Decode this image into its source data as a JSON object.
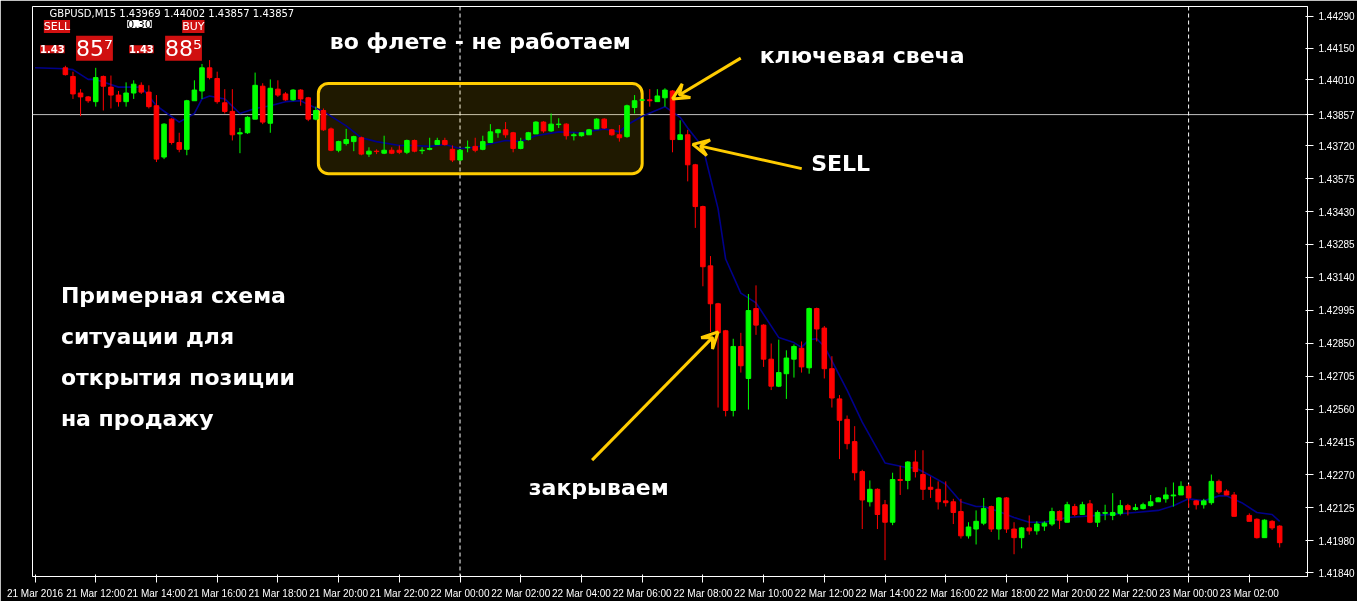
{
  "chart_data": {
    "type": "candlestick",
    "x": [
      "2016-03-21T11:00",
      "2016-03-21T11:15",
      "2016-03-21T11:30",
      "2016-03-21T11:45",
      "2016-03-21T12:00",
      "2016-03-21T12:15",
      "2016-03-21T12:30",
      "2016-03-21T12:45",
      "2016-03-21T13:00",
      "2016-03-21T13:15",
      "2016-03-21T13:30",
      "2016-03-21T13:45",
      "2016-03-21T14:00",
      "2016-03-21T14:15",
      "2016-03-21T14:30",
      "2016-03-21T14:45",
      "2016-03-21T15:00",
      "2016-03-21T15:15",
      "2016-03-21T15:30",
      "2016-03-21T15:45",
      "2016-03-21T16:00",
      "2016-03-21T16:15",
      "2016-03-21T16:30",
      "2016-03-21T16:45",
      "2016-03-21T17:00",
      "2016-03-21T17:15",
      "2016-03-21T17:30",
      "2016-03-21T17:45",
      "2016-03-21T18:00",
      "2016-03-21T18:15",
      "2016-03-21T18:30",
      "2016-03-21T18:45",
      "2016-03-21T19:00",
      "2016-03-21T19:15",
      "2016-03-21T19:30",
      "2016-03-21T19:45",
      "2016-03-21T20:00",
      "2016-03-21T20:15",
      "2016-03-21T20:30",
      "2016-03-21T20:45",
      "2016-03-21T21:00",
      "2016-03-21T21:15",
      "2016-03-21T21:30",
      "2016-03-21T21:45",
      "2016-03-21T22:00",
      "2016-03-21T22:15",
      "2016-03-21T22:30",
      "2016-03-21T22:45",
      "2016-03-21T23:00",
      "2016-03-21T23:15",
      "2016-03-21T23:30",
      "2016-03-21T23:45",
      "2016-03-22T00:00",
      "2016-03-22T00:15",
      "2016-03-22T00:30",
      "2016-03-22T00:45",
      "2016-03-22T01:00",
      "2016-03-22T01:15",
      "2016-03-22T01:30",
      "2016-03-22T01:45",
      "2016-03-22T02:00",
      "2016-03-22T02:15",
      "2016-03-22T02:30",
      "2016-03-22T02:45",
      "2016-03-22T03:00",
      "2016-03-22T03:15",
      "2016-03-22T03:30",
      "2016-03-22T03:45",
      "2016-03-22T04:00",
      "2016-03-22T04:15",
      "2016-03-22T04:30",
      "2016-03-22T04:45",
      "2016-03-22T05:00",
      "2016-03-22T05:15",
      "2016-03-22T05:30",
      "2016-03-22T05:45",
      "2016-03-22T06:00",
      "2016-03-22T06:15",
      "2016-03-22T06:30",
      "2016-03-22T06:45",
      "2016-03-22T07:00",
      "2016-03-22T07:15",
      "2016-03-22T07:30",
      "2016-03-22T07:45",
      "2016-03-22T08:00",
      "2016-03-22T08:15",
      "2016-03-22T08:30",
      "2016-03-22T08:45",
      "2016-03-22T09:00",
      "2016-03-22T09:15",
      "2016-03-22T09:30",
      "2016-03-22T09:45",
      "2016-03-22T10:00",
      "2016-03-22T10:15",
      "2016-03-22T10:30",
      "2016-03-22T10:45",
      "2016-03-22T11:00",
      "2016-03-22T11:15",
      "2016-03-22T11:30",
      "2016-03-22T11:45",
      "2016-03-22T12:00",
      "2016-03-22T12:15",
      "2016-03-22T12:30",
      "2016-03-22T12:45",
      "2016-03-22T13:00",
      "2016-03-22T13:15",
      "2016-03-22T13:30",
      "2016-03-22T13:45",
      "2016-03-22T14:00",
      "2016-03-22T14:15",
      "2016-03-22T14:30",
      "2016-03-22T14:45",
      "2016-03-22T15:00",
      "2016-03-22T15:15",
      "2016-03-22T15:30",
      "2016-03-22T15:45",
      "2016-03-22T16:00",
      "2016-03-22T16:15",
      "2016-03-22T16:30",
      "2016-03-22T16:45",
      "2016-03-22T17:00",
      "2016-03-22T17:15",
      "2016-03-22T17:30",
      "2016-03-22T17:45",
      "2016-03-22T18:00",
      "2016-03-22T18:15",
      "2016-03-22T18:30",
      "2016-03-22T18:45",
      "2016-03-22T19:00",
      "2016-03-22T19:15",
      "2016-03-22T19:30",
      "2016-03-22T19:45",
      "2016-03-22T20:00",
      "2016-03-22T20:15",
      "2016-03-22T20:30",
      "2016-03-22T20:45",
      "2016-03-22T21:00",
      "2016-03-22T21:15",
      "2016-03-22T21:30",
      "2016-03-22T21:45",
      "2016-03-22T22:00",
      "2016-03-22T22:15",
      "2016-03-22T22:30",
      "2016-03-22T22:45",
      "2016-03-22T23:00",
      "2016-03-22T23:15",
      "2016-03-22T23:30",
      "2016-03-22T23:45",
      "2016-03-23T00:00",
      "2016-03-23T00:15",
      "2016-03-23T00:30",
      "2016-03-23T00:45",
      "2016-03-23T01:00",
      "2016-03-23T01:15",
      "2016-03-23T01:30",
      "2016-03-23T02:00",
      "2016-03-23T02:15",
      "2016-03-23T02:30",
      "2016-03-23T02:45",
      "2016-03-23T03:00"
    ],
    "ohlc": [
      [
        1.44063,
        1.44072,
        1.44029,
        1.44033
      ],
      [
        1.44025,
        1.44046,
        1.43926,
        1.43948
      ],
      [
        1.43952,
        1.43969,
        1.4385,
        1.43935
      ],
      [
        1.43935,
        1.43939,
        1.43909,
        1.43918
      ],
      [
        1.43914,
        1.44063,
        1.43892,
        1.4402
      ],
      [
        1.44025,
        1.44029,
        1.43875,
        1.43982
      ],
      [
        1.43978,
        1.44029,
        1.43884,
        1.43943
      ],
      [
        1.43943,
        1.43961,
        1.43892,
        1.43914
      ],
      [
        1.43914,
        1.43999,
        1.43892,
        1.43952
      ],
      [
        1.43952,
        1.44008,
        1.43926,
        1.43991
      ],
      [
        1.43986,
        1.43999,
        1.43948,
        1.43956
      ],
      [
        1.43956,
        1.43986,
        1.43884,
        1.43892
      ],
      [
        1.43896,
        1.43943,
        1.43648,
        1.43661
      ],
      [
        1.4367,
        1.43819,
        1.43661,
        1.43815
      ],
      [
        1.43837,
        1.43841,
        1.43725,
        1.43734
      ],
      [
        1.43734,
        1.43777,
        1.43691,
        1.43704
      ],
      [
        1.43704,
        1.43922,
        1.43678,
        1.43918
      ],
      [
        1.43918,
        1.44008,
        1.43918,
        1.43965
      ],
      [
        1.43961,
        1.4408,
        1.43926,
        1.44063
      ],
      [
        1.44063,
        1.44097,
        1.44012,
        1.4402
      ],
      [
        1.44016,
        1.44046,
        1.43905,
        1.43914
      ],
      [
        1.43909,
        1.43969,
        1.43862,
        1.43871
      ],
      [
        1.43871,
        1.43969,
        1.43743,
        1.43768
      ],
      [
        1.43772,
        1.43798,
        1.43687,
        1.43777
      ],
      [
        1.43777,
        1.4385,
        1.43772,
        1.43845
      ],
      [
        1.43837,
        1.44042,
        1.43837,
        1.43986
      ],
      [
        1.43982,
        1.43995,
        1.43815,
        1.43824
      ],
      [
        1.43819,
        1.44012,
        1.43777,
        1.43973
      ],
      [
        1.43969,
        1.44008,
        1.43935,
        1.43943
      ],
      [
        1.43948,
        1.43956,
        1.43918,
        1.43922
      ],
      [
        1.43922,
        1.43969,
        1.43918,
        1.43965
      ],
      [
        1.43965,
        1.43969,
        1.43896,
        1.43926
      ],
      [
        1.43931,
        1.43935,
        1.43828,
        1.43837
      ],
      [
        1.43837,
        1.43892,
        1.43832,
        1.43875
      ],
      [
        1.43875,
        1.43884,
        1.43785,
        1.4379
      ],
      [
        1.43794,
        1.438,
        1.43696,
        1.437
      ],
      [
        1.437,
        1.43742,
        1.43691,
        1.43738
      ],
      [
        1.4373,
        1.43794,
        1.43721,
        1.43747
      ],
      [
        1.43738,
        1.43764,
        1.43696,
        1.4376
      ],
      [
        1.43755,
        1.4376,
        1.43678,
        1.43683
      ],
      [
        1.43683,
        1.43713,
        1.4367,
        1.43696
      ],
      [
        1.43696,
        1.43704,
        1.43683,
        1.43694
      ],
      [
        1.43687,
        1.43764,
        1.43683,
        1.437
      ],
      [
        1.437,
        1.43713,
        1.43683,
        1.43687
      ],
      [
        1.437,
        1.43721,
        1.43683,
        1.43691
      ],
      [
        1.43691,
        1.43747,
        1.43683,
        1.43743
      ],
      [
        1.43743,
        1.43747,
        1.43691,
        1.43696
      ],
      [
        1.43698,
        1.43713,
        1.43683,
        1.437
      ],
      [
        1.43704,
        1.43755,
        1.437,
        1.43708
      ],
      [
        1.43725,
        1.43755,
        1.43725,
        1.43743
      ],
      [
        1.43743,
        1.43755,
        1.43721,
        1.43725
      ],
      [
        1.43704,
        1.43721,
        1.43648,
        1.43657
      ],
      [
        1.43657,
        1.43704,
        1.43653,
        1.437
      ],
      [
        1.43711,
        1.43743,
        1.43691,
        1.43713
      ],
      [
        1.43717,
        1.43755,
        1.43691,
        1.437
      ],
      [
        1.43704,
        1.43764,
        1.437,
        1.43738
      ],
      [
        1.43734,
        1.43815,
        1.43734,
        1.43781
      ],
      [
        1.43777,
        1.43794,
        1.43755,
        1.4379
      ],
      [
        1.4379,
        1.43824,
        1.43755,
        1.43768
      ],
      [
        1.43777,
        1.43781,
        1.43691,
        1.43708
      ],
      [
        1.43708,
        1.43755,
        1.43704,
        1.43738
      ],
      [
        1.43747,
        1.43781,
        1.43743,
        1.43777
      ],
      [
        1.43772,
        1.43828,
        1.43772,
        1.43824
      ],
      [
        1.43824,
        1.43828,
        1.43777,
        1.43785
      ],
      [
        1.43785,
        1.43862,
        1.43781,
        1.43815
      ],
      [
        1.43813,
        1.43841,
        1.43798,
        1.43815
      ],
      [
        1.43815,
        1.43819,
        1.43747,
        1.43764
      ],
      [
        1.43764,
        1.43777,
        1.43743,
        1.43768
      ],
      [
        1.43764,
        1.43777,
        1.4376,
        1.43777
      ],
      [
        1.43768,
        1.43794,
        1.43768,
        1.4379
      ],
      [
        1.43794,
        1.43841,
        1.43794,
        1.43837
      ],
      [
        1.43837,
        1.43841,
        1.43794,
        1.43798
      ],
      [
        1.4379,
        1.43794,
        1.43764,
        1.43768
      ],
      [
        1.43768,
        1.43811,
        1.43738,
        1.43755
      ],
      [
        1.4376,
        1.43901,
        1.43755,
        1.43896
      ],
      [
        1.43888,
        1.43943,
        1.43862,
        1.43918
      ],
      [
        1.4392,
        1.43926,
        1.43918,
        1.43922
      ],
      [
        1.43922,
        1.43969,
        1.43892,
        1.43918
      ],
      [
        1.43914,
        1.43969,
        1.43914,
        1.43939
      ],
      [
        1.43931,
        1.43973,
        1.43892,
        1.43965
      ],
      [
        1.43961,
        1.43965,
        1.43691,
        1.43747
      ],
      [
        1.43747,
        1.43832,
        1.43747,
        1.43768
      ],
      [
        1.43768,
        1.4379,
        1.43563,
        1.43636
      ],
      [
        1.43636,
        1.4364,
        1.43358,
        1.43452
      ],
      [
        1.43452,
        1.43456,
        1.43101,
        1.43187
      ],
      [
        1.43191,
        1.43234,
        1.429,
        1.43024
      ],
      [
        1.43024,
        1.43028,
        1.42567,
        1.42896
      ],
      [
        1.42905,
        1.42909,
        1.42528,
        1.42554
      ],
      [
        1.42554,
        1.4287,
        1.42528,
        1.42836
      ],
      [
        1.42836,
        1.42896,
        1.42721,
        1.42751
      ],
      [
        1.42695,
        1.43067,
        1.42558,
        1.42994
      ],
      [
        1.43003,
        1.43105,
        1.42887,
        1.4293
      ],
      [
        1.4293,
        1.42934,
        1.42746,
        1.4278
      ],
      [
        1.4278,
        1.42849,
        1.42644,
        1.42661
      ],
      [
        1.42661,
        1.42866,
        1.42657,
        1.42721
      ],
      [
        1.42716,
        1.42819,
        1.42605,
        1.42785
      ],
      [
        1.4278,
        1.42845,
        1.42699,
        1.42836
      ],
      [
        1.42828,
        1.42858,
        1.42721,
        1.42746
      ],
      [
        1.42742,
        1.43007,
        1.42716,
        1.43003
      ],
      [
        1.43003,
        1.43007,
        1.42858,
        1.42913
      ],
      [
        1.42917,
        1.42926,
        1.42695,
        1.42738
      ],
      [
        1.42738,
        1.42793,
        1.42567,
        1.42609
      ],
      [
        1.42605,
        1.42622,
        1.4234,
        1.42511
      ],
      [
        1.42515,
        1.42532,
        1.42383,
        1.42408
      ],
      [
        1.42417,
        1.42485,
        1.42246,
        1.4228
      ],
      [
        1.42285,
        1.42293,
        1.42032,
        1.4216
      ],
      [
        1.42152,
        1.42246,
        1.42131,
        1.42207
      ],
      [
        1.42207,
        1.42211,
        1.42032,
        1.42096
      ],
      [
        1.42139,
        1.4216,
        1.41895,
        1.42062
      ],
      [
        1.42062,
        1.4228,
        1.42049,
        1.4225
      ],
      [
        1.4225,
        1.4231,
        1.42182,
        1.42246
      ],
      [
        1.42246,
        1.42331,
        1.42207,
        1.42327
      ],
      [
        1.42327,
        1.42379,
        1.42259,
        1.42285
      ],
      [
        1.42272,
        1.42379,
        1.4216,
        1.42207
      ],
      [
        1.42216,
        1.42263,
        1.42169,
        1.42207
      ],
      [
        1.42207,
        1.42242,
        1.42118,
        1.42152
      ],
      [
        1.42156,
        1.42242,
        1.42131,
        1.42148
      ],
      [
        1.42152,
        1.42165,
        1.42054,
        1.42105
      ],
      [
        1.42109,
        1.42165,
        1.4199,
        1.42002
      ],
      [
        1.42002,
        1.42062,
        1.4199,
        1.42041
      ],
      [
        1.42032,
        1.42114,
        1.41964,
        1.42066
      ],
      [
        1.42058,
        1.42169,
        1.42049,
        1.42122
      ],
      [
        1.42131,
        1.42135,
        1.42019,
        1.42032
      ],
      [
        1.42032,
        1.42173,
        1.41985,
        1.42169
      ],
      [
        1.42169,
        1.42173,
        1.42015,
        1.42032
      ],
      [
        1.42032,
        1.42062,
        1.41921,
        1.41994
      ],
      [
        1.41994,
        1.42041,
        1.41947,
        1.42037
      ],
      [
        1.42037,
        1.42092,
        1.42007,
        1.42024
      ],
      [
        1.42024,
        1.42066,
        1.42007,
        1.42054
      ],
      [
        1.42045,
        1.42066,
        1.42024,
        1.42058
      ],
      [
        1.42054,
        1.42126,
        1.42045,
        1.42109
      ],
      [
        1.42109,
        1.42114,
        1.42032,
        1.42071
      ],
      [
        1.42062,
        1.42152,
        1.42062,
        1.42139
      ],
      [
        1.42131,
        1.42143,
        1.42088,
        1.42096
      ],
      [
        1.42096,
        1.42152,
        1.42096,
        1.42139
      ],
      [
        1.42143,
        1.4216,
        1.42058,
        1.42062
      ],
      [
        1.42062,
        1.42114,
        1.42041,
        1.42105
      ],
      [
        1.42101,
        1.42139,
        1.42071,
        1.42105
      ],
      [
        1.42092,
        1.4219,
        1.42071,
        1.42105
      ],
      [
        1.42101,
        1.4216,
        1.42092,
        1.42135
      ],
      [
        1.42135,
        1.42143,
        1.42092,
        1.42118
      ],
      [
        1.42118,
        1.42143,
        1.42114,
        1.42126
      ],
      [
        1.42122,
        1.42148,
        1.42118,
        1.42139
      ],
      [
        1.42135,
        1.42182,
        1.42131,
        1.42152
      ],
      [
        1.42152,
        1.42173,
        1.42152,
        1.42169
      ],
      [
        1.42165,
        1.42216,
        1.42148,
        1.42182
      ],
      [
        1.42178,
        1.42237,
        1.42131,
        1.42182
      ],
      [
        1.42182,
        1.42242,
        1.42182,
        1.4222
      ],
      [
        1.4222,
        1.42229,
        1.42126,
        1.42169
      ],
      [
        1.42156,
        1.4216,
        1.42118,
        1.42139
      ],
      [
        1.42139,
        1.42165,
        1.42122,
        1.42156
      ],
      [
        1.42148,
        1.42272,
        1.42139,
        1.42242
      ],
      [
        1.42242,
        1.4225,
        1.42186,
        1.42195
      ],
      [
        1.42199,
        1.42207,
        1.42182,
        1.42182
      ],
      [
        1.42182,
        1.42195,
        1.42088,
        1.42088
      ],
      [
        1.42092,
        1.42101,
        1.42066,
        1.42066
      ],
      [
        1.42075,
        1.42079,
        1.4199,
        1.41994
      ],
      [
        1.41994,
        1.42075,
        1.41994,
        1.42071
      ],
      [
        1.42066,
        1.42071,
        1.42028,
        1.42037
      ],
      [
        1.42045,
        1.42049,
        1.41951,
        1.41972
      ]
    ],
    "colors": [
      "#ff0000",
      "#ff0000",
      "#ff0000",
      "#ff0000",
      "#00ff00",
      "#ff0000",
      "#ff0000",
      "#ff0000",
      "#00ff00",
      "#00ff00",
      "#ff0000",
      "#ff0000",
      "#ff0000",
      "#00ff00",
      "#ff0000",
      "#ff0000",
      "#00ff00",
      "#00ff00",
      "#00ff00",
      "#ff0000",
      "#ff0000",
      "#ff0000",
      "#ff0000",
      "#00ff00",
      "#00ff00",
      "#00ff00",
      "#ff0000",
      "#00ff00",
      "#ff0000",
      "#ff0000",
      "#00ff00",
      "#ff0000",
      "#ff0000",
      "#00ff00",
      "#ff0000",
      "#ff0000",
      "#00ff00",
      "#00ff00",
      "#00ff00",
      "#ff0000",
      "#00ff00",
      "#ff0000",
      "#00ff00",
      "#ff0000",
      "#ff0000",
      "#00ff00",
      "#ff0000",
      "#00ff00",
      "#00ff00",
      "#00ff00",
      "#ff0000",
      "#ff0000",
      "#00ff00",
      "#00ff00",
      "#ff0000",
      "#00ff00",
      "#00ff00",
      "#00ff00",
      "#ff0000",
      "#ff0000",
      "#00ff00",
      "#00ff00",
      "#00ff00",
      "#ff0000",
      "#00ff00",
      "#00ff00",
      "#ff0000",
      "#00ff00",
      "#00ff00",
      "#00ff00",
      "#00ff00",
      "#ff0000",
      "#ff0000",
      "#ff0000",
      "#00ff00",
      "#00ff00",
      "#00ff00",
      "#ff0000",
      "#00ff00",
      "#00ff00",
      "#ff0000",
      "#00ff00",
      "#ff0000",
      "#ff0000",
      "#ff0000",
      "#ff0000",
      "#ff0000",
      "#ff0000",
      "#00ff00",
      "#ff0000",
      "#00ff00",
      "#ff0000",
      "#ff0000",
      "#ff0000",
      "#00ff00",
      "#00ff00",
      "#00ff00",
      "#ff0000",
      "#00ff00",
      "#ff0000",
      "#ff0000",
      "#ff0000",
      "#ff0000",
      "#ff0000",
      "#ff0000",
      "#ff0000",
      "#00ff00",
      "#ff0000",
      "#ff0000",
      "#00ff00",
      "#ff0000",
      "#00ff00",
      "#ff0000",
      "#ff0000",
      "#ff0000",
      "#ff0000",
      "#ff0000",
      "#ff0000",
      "#ff0000",
      "#00ff00",
      "#00ff00",
      "#00ff00",
      "#ff0000",
      "#00ff00",
      "#ff0000",
      "#ff0000",
      "#00ff00",
      "#ff0000",
      "#00ff00",
      "#00ff00",
      "#00ff00",
      "#ff0000",
      "#00ff00",
      "#ff0000",
      "#00ff00",
      "#ff0000",
      "#00ff00",
      "#00ff00",
      "#00ff00",
      "#00ff00",
      "#ff0000",
      "#00ff00",
      "#00ff00",
      "#00ff00",
      "#00ff00",
      "#00ff00",
      "#00ff00",
      "#00ff00",
      "#ff0000",
      "#ff0000",
      "#00ff00",
      "#00ff00",
      "#ff0000",
      "#ff0000",
      "#ff0000",
      "#ff0000",
      "#ff0000",
      "#00ff00",
      "#ff0000",
      "#ff0000"
    ],
    "series": [
      {
        "type": "line",
        "color": "#00008b",
        "x": [
          "2016-03-21T10:00",
          "2016-03-21T11:00",
          "2016-03-21T11:15",
          "2016-03-21T11:45",
          "2016-03-21T12:00",
          "2016-03-21T12:45",
          "2016-03-21T13:30",
          "2016-03-21T14:00",
          "2016-03-21T14:45",
          "2016-03-21T15:15",
          "2016-03-21T15:30",
          "2016-03-21T15:45",
          "2016-03-21T16:15",
          "2016-03-21T16:45",
          "2016-03-21T17:15",
          "2016-03-21T17:45",
          "2016-03-21T18:15",
          "2016-03-21T18:45",
          "2016-03-21T19:00",
          "2016-03-21T19:30",
          "2016-03-21T20:15",
          "2016-03-21T20:45",
          "2016-03-21T21:15",
          "2016-03-21T22:00",
          "2016-03-21T22:30",
          "2016-03-21T23:00",
          "2016-03-21T23:30",
          "2016-03-22T00:00",
          "2016-03-22T00:30",
          "2016-03-22T01:30",
          "2016-03-22T02:00",
          "2016-03-22T02:30",
          "2016-03-22T03:15",
          "2016-03-22T04:00",
          "2016-03-22T04:45",
          "2016-03-22T05:15",
          "2016-03-22T05:30",
          "2016-03-22T06:00",
          "2016-03-22T06:45",
          "2016-03-22T07:15",
          "2016-03-22T07:30",
          "2016-03-22T08:00",
          "2016-03-22T08:30",
          "2016-03-22T08:45",
          "2016-03-22T09:15",
          "2016-03-22T09:45",
          "2016-03-22T10:30",
          "2016-03-22T11:00",
          "2016-03-22T11:15",
          "2016-03-22T11:30",
          "2016-03-22T11:45",
          "2016-03-22T12:00",
          "2016-03-22T12:15",
          "2016-03-22T12:45",
          "2016-03-22T13:15",
          "2016-03-22T14:00",
          "2016-03-22T14:45",
          "2016-03-22T15:00",
          "2016-03-22T15:30",
          "2016-03-22T16:00",
          "2016-03-22T16:30",
          "2016-03-22T17:00",
          "2016-03-22T17:15",
          "2016-03-22T17:45",
          "2016-03-22T18:15",
          "2016-03-22T18:45",
          "2016-03-22T19:15",
          "2016-03-22T20:00",
          "2016-03-22T21:00",
          "2016-03-22T22:15",
          "2016-03-22T23:00",
          "2016-03-22T23:30",
          "2016-03-23T00:00",
          "2016-03-23T00:30",
          "2016-03-23T01:00",
          "2016-03-23T01:15",
          "2016-03-23T01:45",
          "2016-03-23T02:15",
          "2016-03-23T02:45",
          "2016-03-23T03:00"
        ],
        "values": [
          1.44063,
          1.44059,
          1.44055,
          1.44012,
          1.44012,
          1.43978,
          1.43978,
          1.43896,
          1.43824,
          1.43862,
          1.43926,
          1.43939,
          1.43926,
          1.43862,
          1.43884,
          1.43896,
          1.43914,
          1.43918,
          1.43901,
          1.43871,
          1.43807,
          1.43755,
          1.43738,
          1.43721,
          1.43721,
          1.43717,
          1.43725,
          1.43708,
          1.43713,
          1.43743,
          1.43738,
          1.43764,
          1.43781,
          1.43777,
          1.43794,
          1.43781,
          1.43811,
          1.4385,
          1.43892,
          1.43845,
          1.43798,
          1.43713,
          1.43443,
          1.43221,
          1.43071,
          1.43028,
          1.42875,
          1.42853,
          1.42832,
          1.42866,
          1.4287,
          1.42836,
          1.42772,
          1.42644,
          1.42503,
          1.42323,
          1.42302,
          1.42302,
          1.42267,
          1.42229,
          1.42152,
          1.42131,
          1.42131,
          1.42109,
          1.42083,
          1.42062,
          1.42062,
          1.42083,
          1.42092,
          1.42105,
          1.42114,
          1.42135,
          1.42165,
          1.42156,
          1.42178,
          1.42178,
          1.42148,
          1.42105,
          1.42096,
          1.42066
        ]
      }
    ],
    "xlim": [
      "2016-03-21T09:55",
      "2016-03-23T03:55"
    ],
    "xticks": [
      {
        "value": "2016-03-21T10:00",
        "label": "21 Mar 2016"
      },
      {
        "value": "2016-03-21T12:00",
        "label": "21 Mar 12:00"
      },
      {
        "value": "2016-03-21T14:00",
        "label": "21 Mar 14:00"
      },
      {
        "value": "2016-03-21T16:00",
        "label": "21 Mar 16:00"
      },
      {
        "value": "2016-03-21T18:00",
        "label": "21 Mar 18:00"
      },
      {
        "value": "2016-03-21T20:00",
        "label": "21 Mar 20:00"
      },
      {
        "value": "2016-03-21T22:00",
        "label": "21 Mar 22:00"
      },
      {
        "value": "2016-03-22T00:00",
        "label": "22 Mar 00:00"
      },
      {
        "value": "2016-03-22T02:00",
        "label": "22 Mar 02:00"
      },
      {
        "value": "2016-03-22T04:00",
        "label": "22 Mar 04:00"
      },
      {
        "value": "2016-03-22T06:00",
        "label": "22 Mar 06:00"
      },
      {
        "value": "2016-03-22T08:00",
        "label": "22 Mar 08:00"
      },
      {
        "value": "2016-03-22T10:00",
        "label": "22 Mar 10:00"
      },
      {
        "value": "2016-03-22T12:00",
        "label": "22 Mar 12:00"
      },
      {
        "value": "2016-03-22T14:00",
        "label": "22 Mar 14:00"
      },
      {
        "value": "2016-03-22T16:00",
        "label": "22 Mar 16:00"
      },
      {
        "value": "2016-03-22T18:00",
        "label": "22 Mar 18:00"
      },
      {
        "value": "2016-03-22T20:00",
        "label": "22 Mar 20:00"
      },
      {
        "value": "2016-03-22T22:00",
        "label": "22 Mar 22:00"
      },
      {
        "value": "2016-03-23T00:00",
        "label": "23 Mar 00:00"
      },
      {
        "value": "2016-03-23T02:00",
        "label": "23 Mar 02:00"
      }
    ],
    "ylim": [
      1.41823,
      1.44333
    ],
    "yticks": [
      {
        "value": 1.4429,
        "label": "1.44290"
      },
      {
        "value": 1.4415,
        "label": "1.44150"
      },
      {
        "value": 1.4401,
        "label": "1.44010"
      },
      {
        "value": 1.4372,
        "label": "1.43720"
      },
      1.43575,
      {
        "value": 1.4343,
        "label": "1.43430"
      },
      1.43285,
      {
        "value": 1.4314,
        "label": "1.43140"
      },
      1.42995,
      {
        "value": 1.4285,
        "label": "1.42850"
      },
      1.42705,
      {
        "value": 1.4256,
        "label": "1.42560"
      },
      1.42415,
      {
        "value": 1.4227,
        "label": "1.42270"
      },
      1.42125,
      {
        "value": 1.4198,
        "label": "1.41980"
      },
      {
        "value": 1.4184,
        "label": "1.41840"
      }
    ],
    "ref_lines": [
      {
        "axis": "y",
        "value": 1.43857,
        "label": "1.43857",
        "color": "#c0c0c0"
      },
      {
        "axis": "x",
        "value": "2016-03-22T00:00",
        "color": "#ffffff",
        "line_style": "dashed"
      },
      {
        "axis": "x",
        "value": "2016-03-23T00:00",
        "color": "#ffffff",
        "line_style": "dashed"
      }
    ],
    "bands": [
      {
        "axis": "x",
        "from": "2016-03-21T19:20",
        "to": "2016-03-22T06:00",
        "label": "во флете - не работаем",
        "color": "#ffcc00"
      }
    ],
    "annotations": [
      "GBPUSD,M15  1.43969 1.44002 1.43857 1.43857",
      "SELL",
      "0.30",
      "BUY",
      "1.43 85⁷",
      "1.43 88⁵",
      "Примерная схема\nситуации для\nоткрытия позиции\n на продажу",
      {
        "text": "ключевая свеча",
        "x": "2016-03-22T07:00",
        "y": 1.43926
      },
      {
        "text": "SELL",
        "x": "2016-03-22T07:40",
        "y": 1.43726
      },
      {
        "text": "закрываем",
        "x": "2016-03-22T08:30",
        "y": 1.429
      }
    ]
  }
}
